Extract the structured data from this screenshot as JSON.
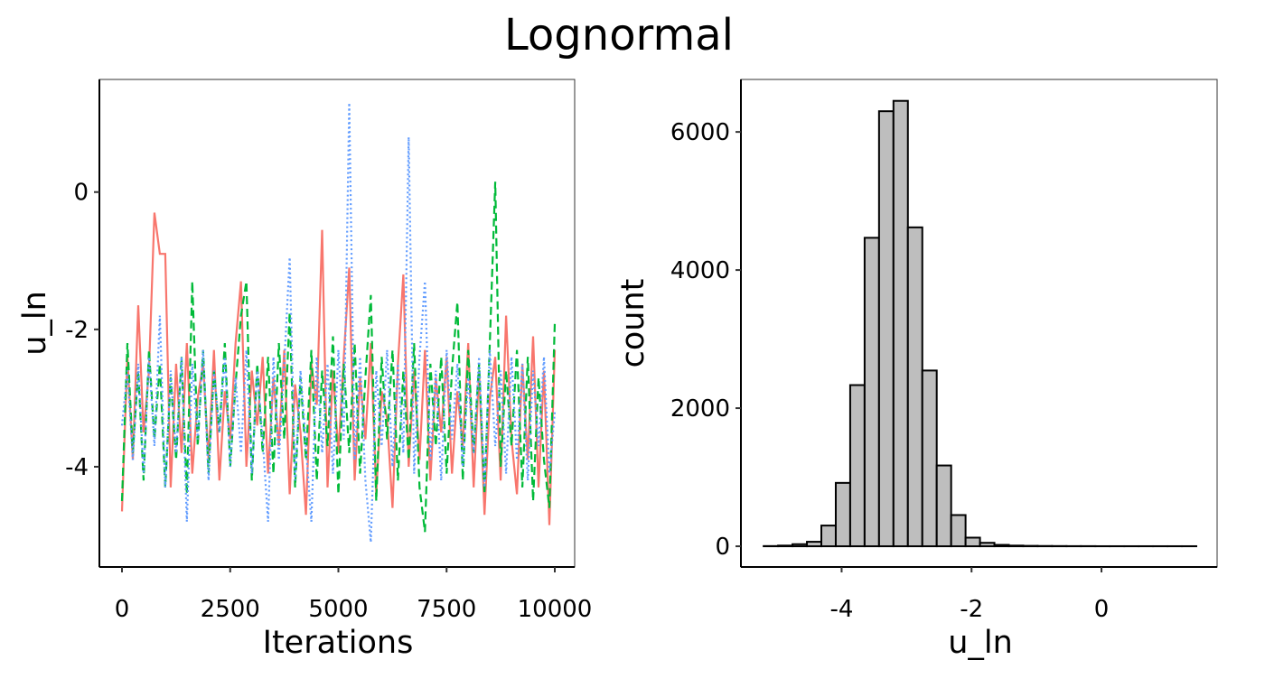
{
  "title": "Lognormal",
  "chart_data": [
    {
      "type": "line",
      "xlabel": "Iterations",
      "ylabel": "u_ln",
      "xlim": [
        0,
        10000
      ],
      "ylim": [
        -5.46,
        1.64
      ],
      "xticks": [
        0,
        2500,
        5000,
        7500,
        10000
      ],
      "xtick_labels": [
        "0",
        "2500",
        "5000",
        "7500",
        "10000"
      ],
      "yticks": [
        0,
        -2,
        -4
      ],
      "ytick_labels": [
        "0",
        "-2",
        "-4"
      ],
      "grid": false,
      "legend": "none",
      "series": [
        {
          "color": "#F8766D",
          "dash": "solid",
          "values": [
            -4.65,
            -2.4,
            -3.9,
            -1.65,
            -3.5,
            -2.6,
            -0.3,
            -0.9,
            -0.9,
            -4.3,
            -2.5,
            -3.8,
            -2.2,
            -4.1,
            -3.0,
            -2.5,
            -3.9,
            -2.3,
            -4.2,
            -2.9,
            -3.6,
            -2.2,
            -1.3,
            -4.0,
            -2.6,
            -3.4,
            -2.4,
            -4.1,
            -2.7,
            -3.7,
            -2.3,
            -4.4,
            -2.8,
            -3.5,
            -4.7,
            -2.5,
            -3.1,
            -0.55,
            -4.3,
            -2.6,
            -3.8,
            -2.4,
            -1.1,
            -4.2,
            -2.7,
            -3.6,
            -2.2,
            -4.4,
            -2.9,
            -3.3,
            -4.6,
            -2.5,
            -1.2,
            -4.0,
            -2.6,
            -3.9,
            -2.3,
            -4.2,
            -2.7,
            -3.5,
            -2.4,
            -4.1,
            -2.9,
            -3.7,
            -2.2,
            -4.3,
            -2.6,
            -4.7,
            -3.0,
            -2.4,
            -4.2,
            -1.8,
            -3.6,
            -4.4,
            -2.5,
            -3.9,
            -2.1,
            -4.3,
            -2.6,
            -4.85,
            -2.3
          ]
        },
        {
          "color": "#00BA38",
          "dash": "dashed",
          "values": [
            -4.5,
            -2.2,
            -3.8,
            -2.6,
            -4.2,
            -2.3,
            -3.6,
            -2.5,
            -4.3,
            -2.7,
            -3.9,
            -2.4,
            -4.4,
            -1.3,
            -3.7,
            -2.3,
            -4.1,
            -2.6,
            -3.5,
            -2.2,
            -4.0,
            -2.8,
            -1.8,
            -1.3,
            -4.2,
            -2.5,
            -3.8,
            -2.4,
            -4.1,
            -2.2,
            -3.6,
            -1.75,
            -4.3,
            -2.7,
            -3.9,
            -2.3,
            -4.2,
            -2.6,
            -3.7,
            -2.1,
            -4.4,
            -2.5,
            -3.8,
            -2.2,
            -4.1,
            -2.7,
            -1.5,
            -4.5,
            -2.4,
            -3.6,
            -2.3,
            -4.2,
            -2.6,
            -3.9,
            -2.2,
            -4.3,
            -4.95,
            -2.5,
            -3.7,
            -2.4,
            -4.1,
            -2.6,
            -1.6,
            -4.2,
            -2.3,
            -3.8,
            -2.5,
            -4.4,
            -2.2,
            0.15,
            -4.0,
            -2.6,
            -3.7,
            -2.3,
            -4.3,
            -2.4,
            -4.5,
            -2.7,
            -3.9,
            -4.6,
            -1.9
          ]
        },
        {
          "color": "#619CFF",
          "dash": "dotted",
          "values": [
            -3.4,
            -2.6,
            -3.9,
            -2.5,
            -4.1,
            -2.4,
            -3.7,
            -1.8,
            -4.3,
            -2.6,
            -3.8,
            -2.4,
            -4.8,
            -2.5,
            -3.6,
            -2.3,
            -4.2,
            -2.6,
            -3.5,
            -2.4,
            -4.0,
            -2.7,
            -3.8,
            -2.3,
            -4.1,
            -2.6,
            -3.6,
            -4.8,
            -2.4,
            -3.9,
            -2.5,
            -0.95,
            -4.2,
            -2.6,
            -3.7,
            -4.8,
            -2.4,
            -3.8,
            -2.5,
            -4.1,
            -2.3,
            -3.6,
            1.3,
            -3.9,
            -2.4,
            -4.2,
            -5.1,
            -2.6,
            -3.7,
            -2.3,
            -4.0,
            -2.5,
            -3.8,
            0.8,
            -4.1,
            -2.4,
            -1.3,
            -3.9,
            -2.6,
            -4.2,
            -2.3,
            -3.6,
            -2.5,
            -4.0,
            -2.7,
            -3.8,
            -2.4,
            -4.3,
            -2.3,
            -3.7,
            -2.6,
            -4.1,
            -2.4,
            -3.9,
            -2.5,
            -4.2,
            -2.6,
            -3.7,
            -2.4,
            -4.1,
            -3.2
          ]
        }
      ]
    },
    {
      "type": "bar",
      "xlabel": "u_ln",
      "ylabel": "count",
      "xlim": [
        -5.55,
        1.78
      ],
      "ylim": [
        -300,
        6760
      ],
      "xticks": [
        -4,
        -2,
        0
      ],
      "xtick_labels": [
        "-4",
        "-2",
        "0"
      ],
      "yticks": [
        0,
        2000,
        4000,
        6000
      ],
      "ytick_labels": [
        "0",
        "2000",
        "4000",
        "6000"
      ],
      "grid": false,
      "bin_start": -5.2,
      "bin_width": 0.222,
      "fill": "#BEBEBE",
      "outline": "#000000",
      "values": [
        3,
        10,
        30,
        65,
        300,
        918,
        2334,
        4467,
        6300,
        6450,
        4618,
        2545,
        1170,
        452,
        125,
        50,
        20,
        10,
        6,
        4,
        3,
        2,
        2,
        1,
        1,
        1,
        1,
        1,
        1,
        1
      ]
    }
  ]
}
